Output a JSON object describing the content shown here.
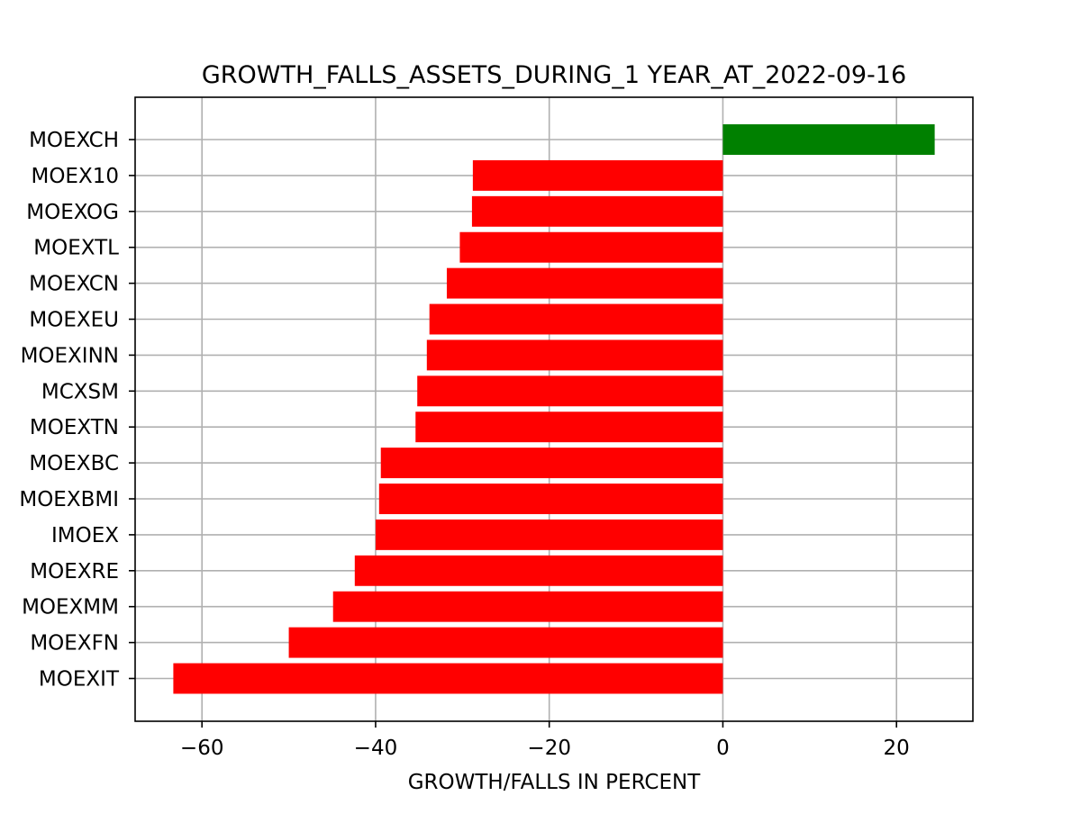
{
  "chart_data": {
    "type": "bar",
    "orientation": "horizontal",
    "title": "GROWTH_FALLS_ASSETS_DURING_1 YEAR_AT_2022-09-16",
    "xlabel": "GROWTH/FALLS IN PERCENT",
    "ylabel": "",
    "xlim": [
      -67.7,
      28.8
    ],
    "xticks": [
      -60,
      -40,
      -20,
      0,
      20
    ],
    "xtick_labels": [
      "−60",
      "−40",
      "−20",
      "0",
      "20"
    ],
    "grid": true,
    "legend": "none",
    "categories": [
      "MOEXIT",
      "MOEXFN",
      "MOEXMM",
      "MOEXRE",
      "IMOEX",
      "MOEXBMI",
      "MOEXBC",
      "MOEXTN",
      "MCXSM",
      "MOEXINN",
      "MOEXEU",
      "MOEXCN",
      "MOEXTL",
      "MOEXOG",
      "MOEX10",
      "MOEXCH"
    ],
    "values": [
      -63.3,
      -50.0,
      -44.9,
      -42.4,
      -40.0,
      -39.6,
      -39.4,
      -35.4,
      -35.2,
      -34.1,
      -33.8,
      -31.8,
      -30.3,
      -28.9,
      -28.8,
      24.4
    ],
    "colors": {
      "positive": "#008000",
      "negative": "#ff0000",
      "grid": "#b0b0b0",
      "axis": "#000000"
    }
  }
}
